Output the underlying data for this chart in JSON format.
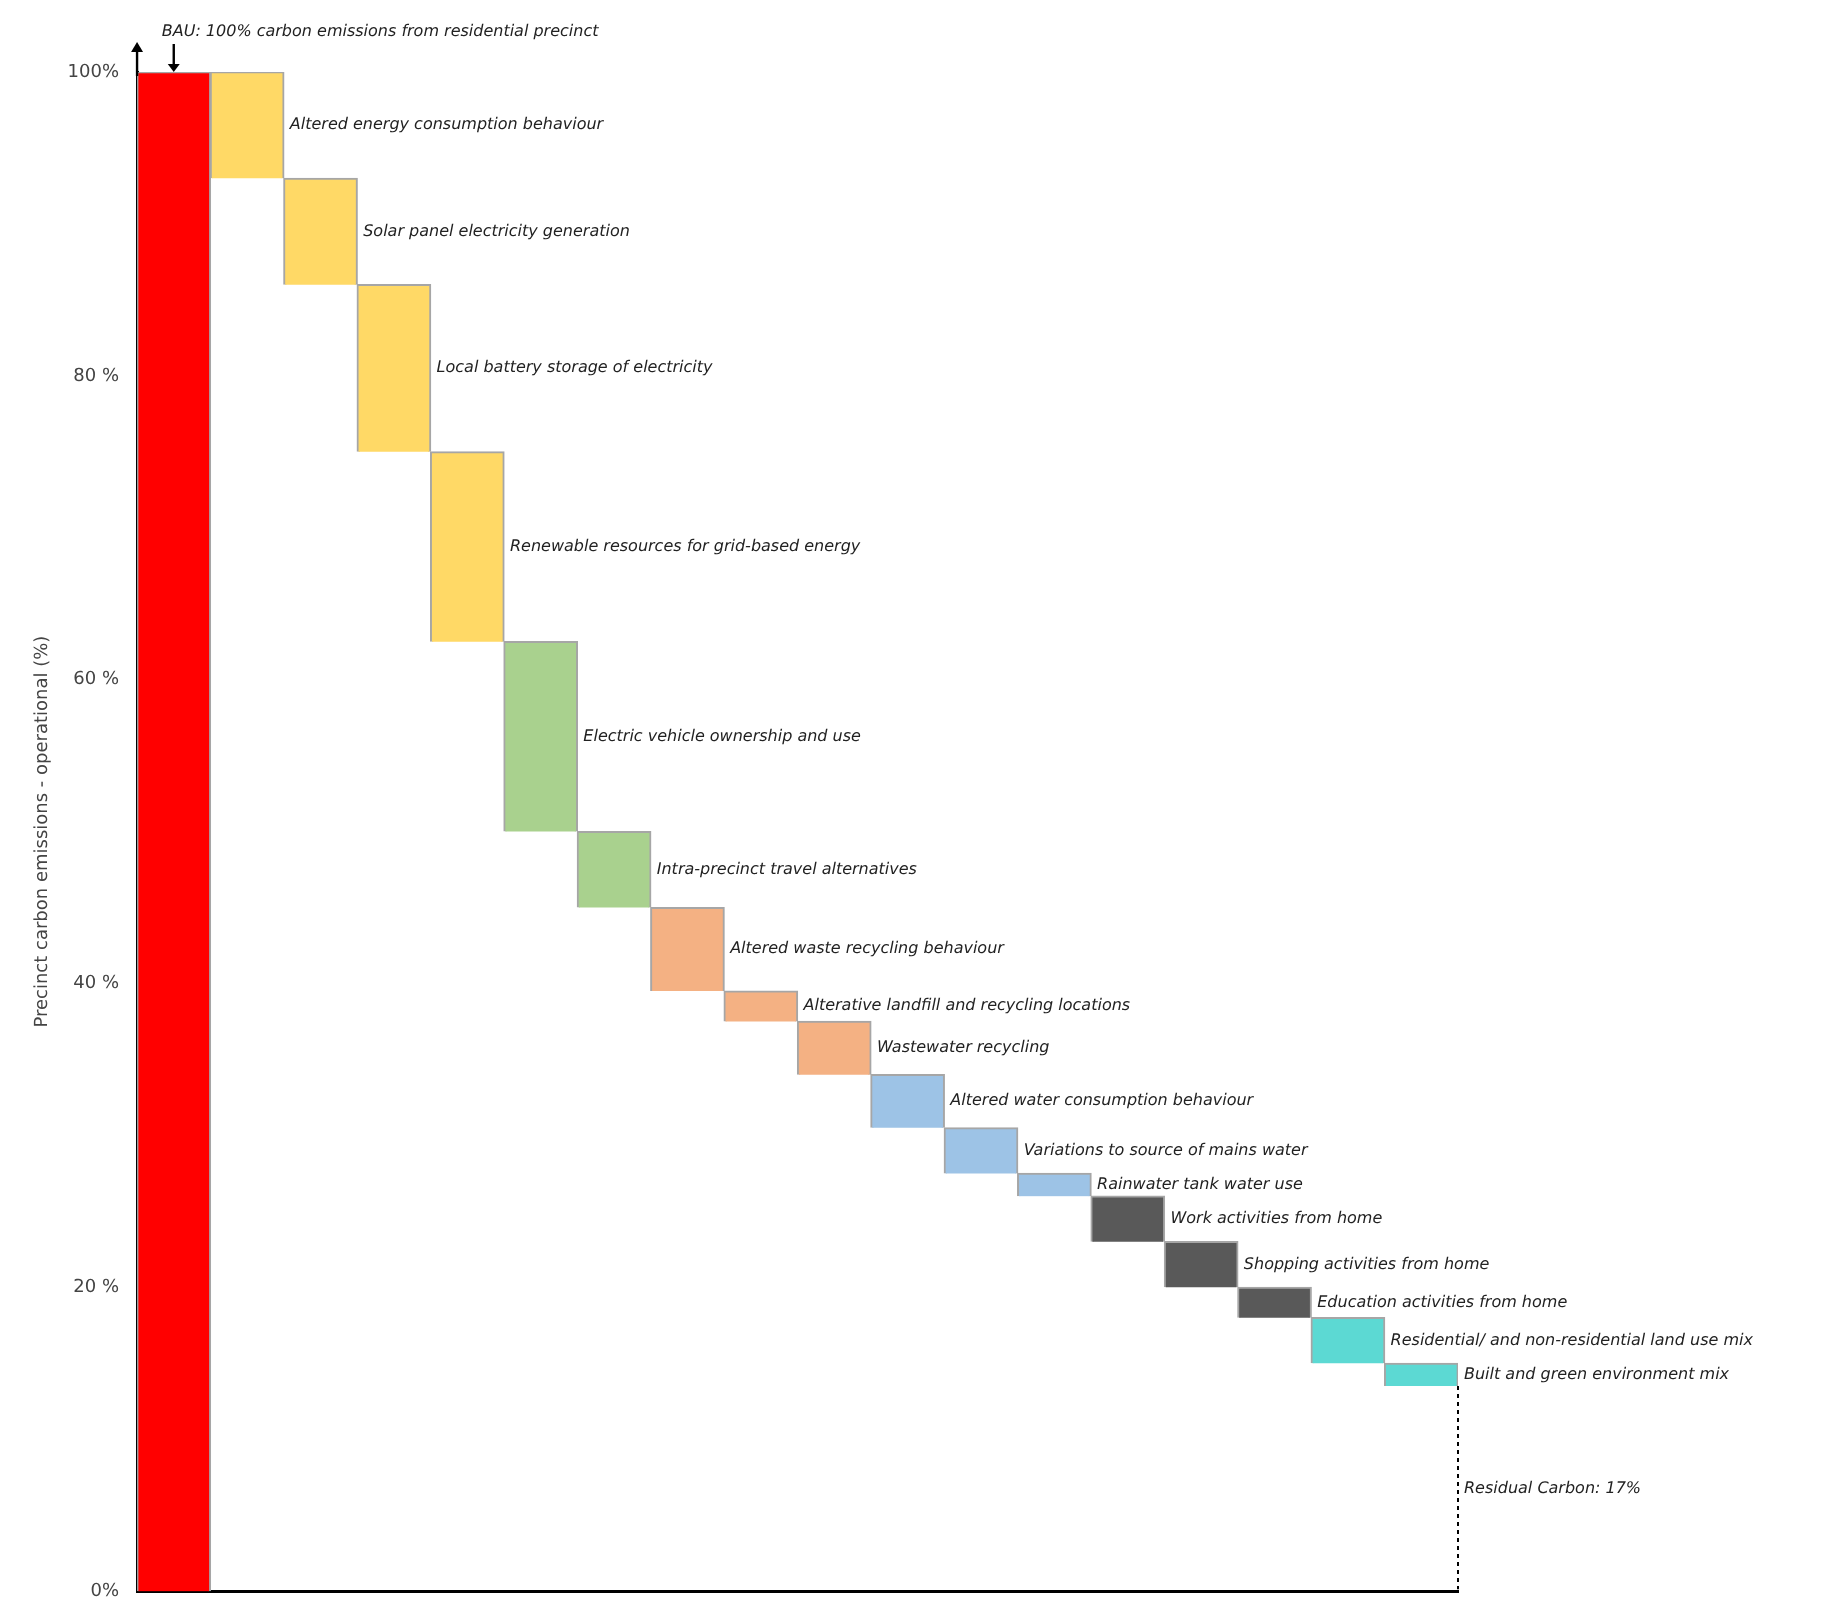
{
  "chart_data": {
    "type": "bar",
    "ylabel": "Precinct carbon emissions - operational (%)",
    "categories": [
      null,
      null,
      null,
      null,
      null,
      null,
      null,
      null,
      null,
      null,
      null,
      null,
      null,
      null,
      null,
      null,
      null,
      null
    ],
    "base": [
      0,
      93,
      86,
      75,
      62.5,
      50,
      45,
      39.5,
      37.5,
      34,
      30.5,
      27.5,
      26,
      23,
      20,
      18,
      15,
      13.5
    ],
    "values": [
      100,
      7,
      7,
      11,
      12.5,
      12.5,
      5,
      5.5,
      2,
      3.5,
      3.5,
      3,
      1.5,
      3,
      3,
      2,
      3,
      1.5
    ],
    "colors": [
      "#ff0000",
      "#ffd966",
      "#ffd966",
      "#ffd966",
      "#ffd966",
      "#a9d18e",
      "#a9d18e",
      "#f4b183",
      "#f4b183",
      "#f4b183",
      "#9dc3e6",
      "#9dc3e6",
      "#9dc3e6",
      "#595959",
      "#595959",
      "#595959",
      "#5cd9d3",
      "#5cd9d3"
    ],
    "ylim": [
      0,
      100
    ],
    "yticks": [
      {
        "value": 0,
        "label": "0%"
      },
      {
        "value": 20,
        "label": "20 %"
      },
      {
        "value": 40,
        "label": "40 %"
      },
      {
        "value": 60,
        "label": "60 %"
      },
      {
        "value": 80,
        "label": "80 %"
      },
      {
        "value": 100,
        "label": "100%"
      }
    ],
    "grid": false,
    "legend": false,
    "annotations": [
      "BAU: 100% carbon emissions from residential precinct",
      "Altered energy consumption behaviour",
      "Solar panel electricity generation",
      "Local battery storage of electricity",
      "Renewable resources for grid-based energy",
      "Electric vehicle ownership and use",
      "Intra-precinct travel alternatives",
      "Altered waste recycling behaviour",
      "Alterative landfill and recycling locations",
      "Wastewater recycling",
      "Altered water consumption behaviour",
      "Variations to source of mains water",
      "Rainwater tank water use",
      "Work activities from home",
      "Shopping activities from home",
      "Education activities from home",
      "Residential/ and non-residential land use mix",
      "Built and green environment mix",
      "Residual Carbon: 17%"
    ]
  }
}
